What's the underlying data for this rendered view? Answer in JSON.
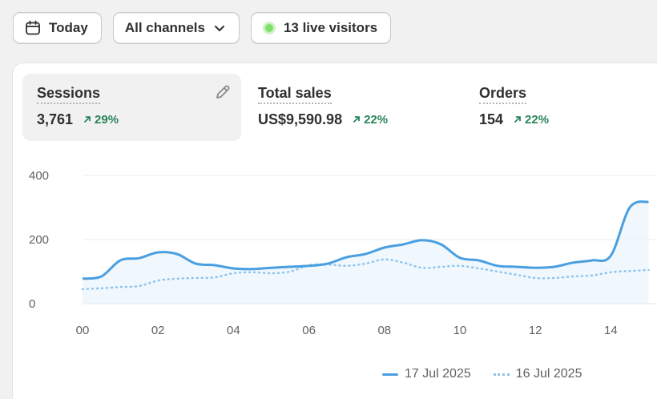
{
  "toolbar": {
    "date_label": "Today",
    "channel_label": "All channels",
    "live_label": "13 live visitors"
  },
  "metrics": [
    {
      "label": "Sessions",
      "value": "3,761",
      "change": "29%"
    },
    {
      "label": "Total sales",
      "value": "US$9,590.98",
      "change": "22%"
    },
    {
      "label": "Orders",
      "value": "154",
      "change": "22%"
    }
  ],
  "colors": {
    "current": "#4a9fe0",
    "previous": "#8cc4ee",
    "positive": "#29845a",
    "live": "#7fe06a"
  },
  "chart_data": {
    "type": "line",
    "xlabel": "",
    "ylabel": "",
    "ylim": [
      0,
      400
    ],
    "y_ticks": [
      "0",
      "200",
      "400"
    ],
    "x_ticks": [
      "00",
      "02",
      "04",
      "06",
      "08",
      "10",
      "12",
      "14"
    ],
    "grid": true,
    "legend_position": "bottom",
    "x": [
      0,
      0.5,
      1,
      1.5,
      2,
      2.5,
      3,
      3.5,
      4,
      4.5,
      5,
      5.5,
      6,
      6.5,
      7,
      7.5,
      8,
      8.5,
      9,
      9.5,
      10,
      10.5,
      11,
      11.5,
      12,
      12.5,
      13,
      13.5,
      14,
      14.5,
      15
    ],
    "series": [
      {
        "name": "17 Jul 2025",
        "style": "solid",
        "values": [
          78,
          85,
          135,
          142,
          160,
          155,
          125,
          120,
          110,
          108,
          112,
          115,
          118,
          125,
          145,
          155,
          175,
          185,
          198,
          185,
          143,
          135,
          118,
          115,
          112,
          115,
          128,
          135,
          150,
          300,
          318
        ]
      },
      {
        "name": "16 Jul 2025",
        "style": "dotted",
        "values": [
          45,
          48,
          52,
          55,
          72,
          78,
          80,
          82,
          95,
          98,
          95,
          100,
          120,
          122,
          118,
          125,
          138,
          128,
          112,
          115,
          118,
          110,
          100,
          90,
          80,
          80,
          85,
          88,
          98,
          102,
          105
        ]
      }
    ]
  }
}
